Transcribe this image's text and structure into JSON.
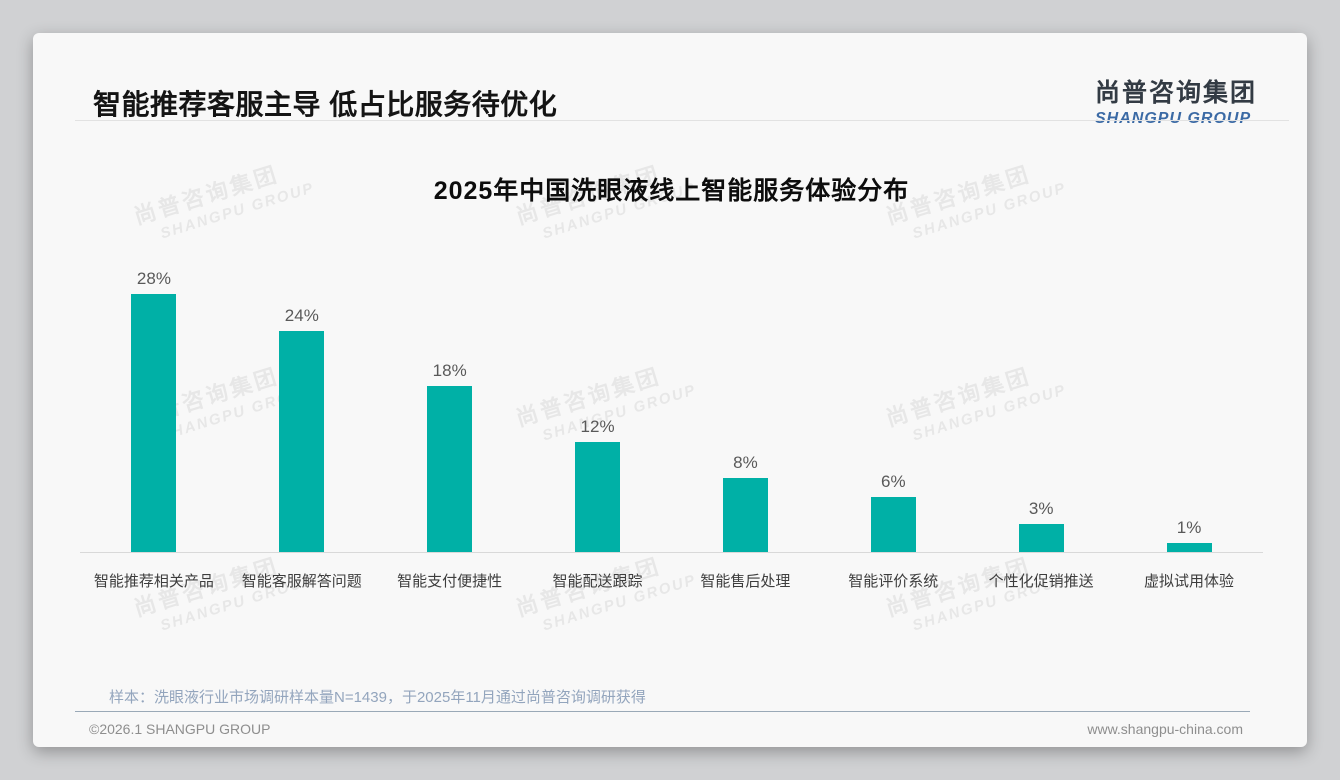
{
  "header": {
    "title": "智能推荐客服主导 低占比服务待优化"
  },
  "logo": {
    "cn": "尚普咨询集团",
    "en": "SHANGPU GROUP"
  },
  "watermark": {
    "cn": "尚普咨询集团",
    "en": "SHANGPU GROUP"
  },
  "chart_data": {
    "type": "bar",
    "title": "2025年中国洗眼液线上智能服务体验分布",
    "categories": [
      "智能推荐相关产品",
      "智能客服解答问题",
      "智能支付便捷性",
      "智能配送跟踪",
      "智能售后处理",
      "智能评价系统",
      "个性化促销推送",
      "虚拟试用体验"
    ],
    "values": [
      28,
      24,
      18,
      12,
      8,
      6,
      3,
      1
    ],
    "value_labels": [
      "28%",
      "24%",
      "18%",
      "12%",
      "8%",
      "6%",
      "3%",
      "1%"
    ],
    "unit": "%",
    "bar_color": "#00b0a6",
    "ylim": [
      0,
      30
    ],
    "grid": false,
    "legend": "none",
    "xlabel": "",
    "ylabel": ""
  },
  "footnote": "样本：洗眼液行业市场调研样本量N=1439，于2025年11月通过尚普咨询调研获得",
  "footer": {
    "left": "©2026.1 SHANGPU GROUP",
    "right": "www.shangpu-china.com"
  }
}
